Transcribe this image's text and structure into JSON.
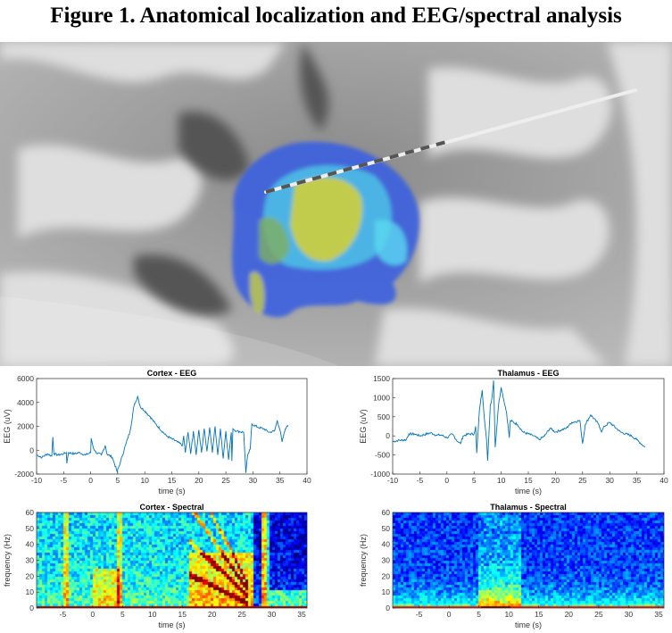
{
  "figure_title": "Figure 1. Anatomical localization and EEG/spectral analysis",
  "image_panel": {
    "subject": "coronal MRI slice with 3D thalamic nuclei reconstruction and depth electrode",
    "colors": {
      "blue": "#3b5fe0",
      "cyan": "#4fd0e8",
      "yellow": "#d8d030",
      "green": "#7fb060"
    }
  },
  "chart_data": [
    {
      "id": "cortex-eeg",
      "type": "line",
      "title": "Cortex - EEG",
      "xlabel": "time (s)",
      "ylabel": "EEG (uV)",
      "xlim": [
        -10,
        40
      ],
      "ylim": [
        -2000,
        6000
      ],
      "xticks": [
        "-10",
        "-5",
        "0",
        "5",
        "10",
        "15",
        "20",
        "25",
        "30",
        "35",
        "40"
      ],
      "yticks": [
        "-2000",
        "0",
        "2000",
        "4000",
        "6000"
      ],
      "color": "#0072BD",
      "series": [
        {
          "name": "Cortex",
          "points": [
            [
              -10,
              -400
            ],
            [
              -9,
              -600
            ],
            [
              -8,
              -300
            ],
            [
              -7.2,
              -500
            ],
            [
              -7,
              1100
            ],
            [
              -6.8,
              -300
            ],
            [
              -6,
              -400
            ],
            [
              -5,
              -300
            ],
            [
              -4.5,
              -200
            ],
            [
              -4.4,
              -1100
            ],
            [
              -4.1,
              -200
            ],
            [
              -3,
              -300
            ],
            [
              -2,
              -200
            ],
            [
              -1,
              -400
            ],
            [
              0,
              -200
            ],
            [
              0.1,
              1000
            ],
            [
              0.5,
              200
            ],
            [
              1,
              -200
            ],
            [
              2,
              -400
            ],
            [
              2.7,
              400
            ],
            [
              3,
              -300
            ],
            [
              4,
              -600
            ],
            [
              4.9,
              -1800
            ],
            [
              5.5,
              -1000
            ],
            [
              6.5,
              500
            ],
            [
              7.3,
              1600
            ],
            [
              8,
              3700
            ],
            [
              8.7,
              4500
            ],
            [
              9.2,
              3600
            ],
            [
              10,
              3300
            ],
            [
              11,
              2800
            ],
            [
              12,
              2200
            ],
            [
              14,
              1200
            ],
            [
              16,
              700
            ],
            [
              17,
              400
            ],
            [
              17.2,
              1200
            ],
            [
              17.5,
              -200
            ],
            [
              18,
              1500
            ],
            [
              18.5,
              -300
            ],
            [
              19,
              1600
            ],
            [
              19.5,
              -400
            ],
            [
              20,
              1700
            ],
            [
              20.5,
              -200
            ],
            [
              21,
              1800
            ],
            [
              21.5,
              -100
            ],
            [
              22,
              1900
            ],
            [
              22.5,
              -200
            ],
            [
              23,
              2000
            ],
            [
              23.5,
              -400
            ],
            [
              24,
              1800
            ],
            [
              24.5,
              -700
            ],
            [
              25,
              1600
            ],
            [
              25.5,
              -800
            ],
            [
              26,
              1500
            ],
            [
              26.1,
              -900
            ],
            [
              26.3,
              1800
            ],
            [
              27,
              1600
            ],
            [
              28.3,
              1500
            ],
            [
              28.7,
              -1900
            ],
            [
              29,
              -500
            ],
            [
              29.5,
              100
            ],
            [
              29.8,
              2200
            ],
            [
              31,
              1900
            ],
            [
              32,
              1800
            ],
            [
              33,
              1500
            ],
            [
              34,
              1600
            ],
            [
              34.5,
              2500
            ],
            [
              35,
              1700
            ],
            [
              35.4,
              700
            ],
            [
              36,
              1800
            ],
            [
              36.5,
              2100
            ]
          ]
        }
      ]
    },
    {
      "id": "thalamus-eeg",
      "type": "line",
      "title": "Thalamus - EEG",
      "xlabel": "time (s)",
      "ylabel": "EEG (uV)",
      "xlim": [
        -10,
        40
      ],
      "ylim": [
        -1000,
        1500
      ],
      "xticks": [
        "-10",
        "-5",
        "0",
        "5",
        "10",
        "15",
        "20",
        "25",
        "30",
        "35",
        "40"
      ],
      "yticks": [
        "-1000",
        "-500",
        "0",
        "500",
        "1000",
        "1500"
      ],
      "color": "#0072BD",
      "series": [
        {
          "name": "Thalamus",
          "points": [
            [
              -10,
              -150
            ],
            [
              -9,
              -120
            ],
            [
              -7.5,
              -100
            ],
            [
              -7,
              50
            ],
            [
              -6,
              50
            ],
            [
              -5,
              0
            ],
            [
              -3,
              80
            ],
            [
              -2,
              20
            ],
            [
              -1,
              20
            ],
            [
              0,
              -50
            ],
            [
              1,
              50
            ],
            [
              2,
              -150
            ],
            [
              2.5,
              -200
            ],
            [
              3,
              0
            ],
            [
              4,
              50
            ],
            [
              5,
              50
            ],
            [
              5.3,
              250
            ],
            [
              5.5,
              -450
            ],
            [
              6,
              700
            ],
            [
              6.5,
              1200
            ],
            [
              7,
              300
            ],
            [
              7.3,
              -100
            ],
            [
              7.5,
              -650
            ],
            [
              8,
              800
            ],
            [
              8.3,
              1000
            ],
            [
              8.6,
              1450
            ],
            [
              8.9,
              -300
            ],
            [
              9.5,
              800
            ],
            [
              10,
              1270
            ],
            [
              11,
              600
            ],
            [
              11.5,
              -50
            ],
            [
              11.7,
              400
            ],
            [
              13,
              300
            ],
            [
              14,
              100
            ],
            [
              16,
              0
            ],
            [
              17,
              -100
            ],
            [
              18,
              0
            ],
            [
              19,
              200
            ],
            [
              20,
              100
            ],
            [
              22,
              200
            ],
            [
              23,
              350
            ],
            [
              24.5,
              400
            ],
            [
              25,
              -200
            ],
            [
              25.5,
              300
            ],
            [
              26.5,
              550
            ],
            [
              28,
              300
            ],
            [
              28.5,
              100
            ],
            [
              29,
              250
            ],
            [
              30,
              350
            ],
            [
              32,
              100
            ],
            [
              34,
              0
            ],
            [
              35,
              -100
            ],
            [
              36.5,
              -300
            ]
          ]
        }
      ]
    },
    {
      "id": "cortex-spectral",
      "type": "heatmap",
      "title": "Cortex - Spectral",
      "xlabel": "time (s)",
      "ylabel": "frequency (Hz)",
      "xlim": [
        -9.4,
        35.9
      ],
      "ylim": [
        0,
        60
      ],
      "xticks": [
        "-5",
        "0",
        "5",
        "10",
        "15",
        "20",
        "25",
        "30",
        "35"
      ],
      "yticks": [
        "0",
        "10",
        "20",
        "30",
        "40",
        "50",
        "60"
      ],
      "colormap": "jet"
    },
    {
      "id": "thalamus-spectral",
      "type": "heatmap",
      "title": "Thalamus - Spectral",
      "xlabel": "time (s)",
      "ylabel": "frequency (Hz)",
      "xlim": [
        -9.4,
        35.9
      ],
      "ylim": [
        0,
        60
      ],
      "xticks": [
        "-5",
        "0",
        "5",
        "10",
        "15",
        "20",
        "25",
        "30",
        "35"
      ],
      "yticks": [
        "0",
        "10",
        "20",
        "30",
        "40",
        "50",
        "60"
      ],
      "colormap": "jet"
    }
  ]
}
